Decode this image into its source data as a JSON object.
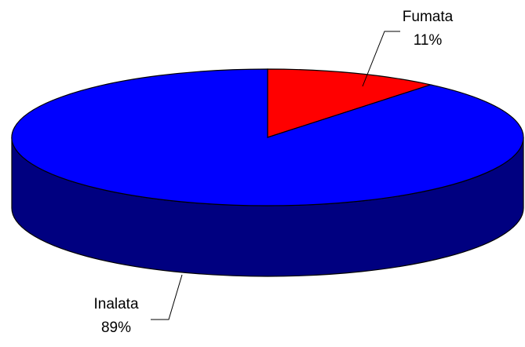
{
  "chart_data": {
    "type": "pie3d",
    "categories": [
      "Fumata",
      "Inalata"
    ],
    "values": [
      11,
      89
    ],
    "value_labels": [
      "11%",
      "89%"
    ],
    "colors": [
      "#ff0000",
      "#0000ff"
    ],
    "side_colors": [
      "#800000",
      "#000080"
    ]
  }
}
